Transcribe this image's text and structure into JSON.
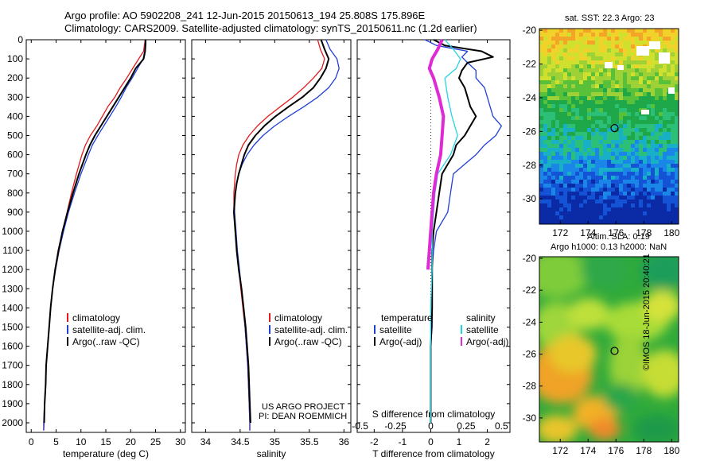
{
  "header": {
    "line1": "Argo profile: AO 5902208_241 12-Jun-2015 20150613_194 25.808S 175.896E",
    "line2": "Climatology: CARS2009. Satellite-adjusted climatology: synTS_20150611.nc (1.2d earlier)"
  },
  "colors": {
    "climatology": "#e41a1c",
    "satellite": "#1f3fd6",
    "argo": "#000000",
    "salinity_satellite": "#22d4e6",
    "salinity_argo": "#e02ad6"
  },
  "credits": {
    "project": "US ARGO PROJECT",
    "pi": "PI: DEAN ROEMMICH"
  },
  "side_label": "©IMOS 18-Jun-2015 20:40:21",
  "map_sst": {
    "title": "sat. SST: 22.3 Argo: 23"
  },
  "map_sla": {
    "title1": "Altim. SLA: 0.19",
    "title2": "Argo h1000: 0.13 h2000: NaN"
  },
  "chart_data": [
    {
      "type": "line",
      "id": "temperature",
      "xlabel": "temperature (deg C)",
      "ylabel": "",
      "xlim": [
        -1,
        31
      ],
      "ylim": [
        2050,
        0
      ],
      "xticks": [
        0,
        5,
        10,
        15,
        20,
        25,
        30
      ],
      "yticks": [
        0,
        100,
        200,
        300,
        400,
        500,
        600,
        700,
        800,
        900,
        1000,
        1100,
        1200,
        1300,
        1400,
        1500,
        1600,
        1700,
        1800,
        1900,
        2000
      ],
      "legend": [
        "climatology",
        "satellite-adj. clim.",
        "Argo(..raw -QC)"
      ],
      "series": [
        {
          "name": "climatology",
          "depth": [
            0,
            60,
            100,
            150,
            200,
            250,
            300,
            350,
            400,
            450,
            500,
            550,
            600,
            700,
            800,
            900,
            1000,
            1100,
            1200,
            1300,
            1400,
            1500,
            1600,
            1700,
            1800,
            1900,
            2000,
            2040
          ],
          "values": [
            22.9,
            22.6,
            21.6,
            20.4,
            19.2,
            17.9,
            16.8,
            15.4,
            14.3,
            13.2,
            11.9,
            10.9,
            10.2,
            9.1,
            8.1,
            7.2,
            6.3,
            5.4,
            4.8,
            4.3,
            3.9,
            3.6,
            3.3,
            3.0,
            2.9,
            2.7,
            2.6,
            2.5
          ]
        },
        {
          "name": "satellite-adj. clim.",
          "depth": [
            0,
            60,
            100,
            150,
            200,
            250,
            300,
            350,
            400,
            450,
            500,
            550,
            600,
            700,
            800,
            900,
            1000,
            1100,
            1200,
            1300,
            1400,
            1500,
            1600,
            1700,
            1800,
            1900,
            2000,
            2040
          ],
          "values": [
            23.0,
            22.8,
            22.5,
            21.4,
            20.3,
            19.1,
            18.1,
            17.0,
            15.8,
            14.6,
            13.4,
            12.3,
            11.5,
            10.0,
            8.7,
            7.5,
            6.5,
            5.6,
            4.9,
            4.3,
            3.9,
            3.6,
            3.3,
            3.0,
            2.9,
            2.7,
            2.5,
            2.5
          ]
        },
        {
          "name": "Argo(..raw -QC)",
          "depth": [
            0,
            20,
            60,
            100,
            150,
            200,
            250,
            300,
            350,
            400,
            450,
            500,
            550,
            600,
            700,
            800,
            900,
            1000,
            1100,
            1200,
            1300,
            1400,
            1500,
            1600,
            1700,
            1800,
            1900,
            2000
          ],
          "values": [
            23.0,
            23.0,
            22.9,
            22.6,
            21.0,
            20.0,
            18.8,
            17.6,
            16.4,
            15.2,
            14.0,
            12.8,
            11.8,
            11.0,
            9.6,
            8.4,
            7.3,
            6.3,
            5.5,
            4.8,
            4.3,
            3.9,
            3.6,
            3.3,
            3.0,
            2.9,
            2.7,
            2.6
          ]
        }
      ]
    },
    {
      "type": "line",
      "id": "salinity",
      "xlabel": "salinity",
      "ylabel": "",
      "xlim": [
        33.8,
        36.1
      ],
      "ylim": [
        2050,
        0
      ],
      "xticks": [
        34,
        34.5,
        35,
        35.5,
        36
      ],
      "legend": [
        "climatology",
        "satellite-adj. clim.",
        "Argo(..raw -QC)"
      ],
      "series": [
        {
          "name": "climatology",
          "depth": [
            0,
            50,
            100,
            150,
            200,
            250,
            300,
            350,
            400,
            450,
            500,
            550,
            600,
            650,
            700,
            750,
            800,
            850,
            900,
            950,
            1000,
            1100,
            1200,
            1300,
            1400,
            1500,
            1600,
            1700,
            1800,
            1900,
            2000,
            2040
          ],
          "values": [
            35.62,
            35.66,
            35.72,
            35.68,
            35.56,
            35.42,
            35.26,
            35.08,
            34.9,
            34.75,
            34.63,
            34.54,
            34.48,
            34.45,
            34.43,
            34.42,
            34.41,
            34.41,
            34.41,
            34.42,
            34.43,
            34.45,
            34.48,
            34.51,
            34.54,
            34.57,
            34.59,
            34.61,
            34.62,
            34.63,
            34.64,
            34.64
          ]
        },
        {
          "name": "satellite-adj. clim.",
          "depth": [
            0,
            50,
            100,
            150,
            200,
            250,
            300,
            350,
            400,
            450,
            500,
            550,
            600,
            650,
            700,
            750,
            800,
            850,
            900,
            950,
            1000,
            1100,
            1200,
            1300,
            1400,
            1500,
            1600,
            1700,
            1800,
            1900,
            2000,
            2040
          ],
          "values": [
            35.74,
            35.8,
            35.9,
            35.93,
            35.88,
            35.78,
            35.62,
            35.42,
            35.2,
            35.0,
            34.83,
            34.7,
            34.6,
            34.53,
            34.48,
            34.45,
            34.43,
            34.42,
            34.42,
            34.43,
            34.44,
            34.46,
            34.49,
            34.52,
            34.55,
            34.57,
            34.59,
            34.61,
            34.62,
            34.63,
            34.64,
            34.64
          ]
        },
        {
          "name": "Argo(..raw -QC)",
          "depth": [
            0,
            50,
            100,
            150,
            200,
            250,
            300,
            350,
            400,
            450,
            500,
            550,
            600,
            650,
            700,
            750,
            800,
            850,
            900,
            950,
            1000,
            1100,
            1200,
            1300,
            1400,
            1500,
            1600,
            1700,
            1800,
            1900,
            2000
          ],
          "values": [
            35.67,
            35.72,
            35.78,
            35.74,
            35.66,
            35.56,
            35.4,
            35.2,
            35.01,
            34.85,
            34.72,
            34.62,
            34.56,
            34.52,
            34.48,
            34.45,
            34.43,
            34.42,
            34.41,
            34.42,
            34.43,
            34.45,
            34.48,
            34.52,
            34.55,
            34.58,
            34.6,
            34.62,
            34.63,
            34.64,
            34.65
          ]
        }
      ]
    },
    {
      "type": "line",
      "id": "difference",
      "xlabel": "T difference from climatology",
      "x2label": "S difference from climatology",
      "xlim": [
        -2.6,
        2.8
      ],
      "ylim": [
        2050,
        0
      ],
      "xticks": [
        -2,
        -1,
        0,
        1,
        2
      ],
      "x2ticks": [
        -0.5,
        -0.25,
        0,
        0.25,
        0.5
      ],
      "legend_temperature": "temperature",
      "legend_salinity": "salinity",
      "legend": [
        "satellite",
        "Argo(-adj)",
        "satellite",
        "Argo(-adj)"
      ],
      "series": [
        {
          "name": "satellite",
          "group": "temperature",
          "depth": [
            0,
            30,
            60,
            90,
            120,
            160,
            200,
            250,
            300,
            350,
            400,
            450,
            500,
            550,
            600,
            650,
            700,
            800,
            900,
            1000,
            1100,
            1200,
            1300,
            1400,
            1500,
            1600,
            1700,
            1800,
            1900,
            2000
          ],
          "values": [
            -0.2,
            0.2,
            1.3,
            1.1,
            1.3,
            1.6,
            1.6,
            1.9,
            2.0,
            2.1,
            2.2,
            2.5,
            2.3,
            1.9,
            1.6,
            1.2,
            0.8,
            0.7,
            0.6,
            0.2,
            0.1,
            0.05,
            0.05,
            0.05,
            0.05,
            0.0,
            0.0,
            0.0,
            0.0,
            0.0
          ]
        },
        {
          "name": "Argo(-adj)",
          "group": "temperature",
          "depth": [
            0,
            30,
            60,
            90,
            120,
            160,
            200,
            250,
            300,
            350,
            400,
            450,
            500,
            550,
            600,
            650,
            700,
            800,
            900,
            1000,
            1100,
            1200,
            1300,
            1400,
            1500,
            1600,
            1700,
            1800,
            1900,
            2000
          ],
          "values": [
            0.1,
            0.5,
            1.8,
            2.2,
            1.3,
            1.1,
            1.0,
            1.2,
            1.3,
            1.4,
            1.6,
            1.4,
            1.2,
            0.9,
            0.8,
            0.6,
            0.4,
            0.3,
            0.2,
            0.1,
            0.05,
            0.05,
            0.05,
            0.05,
            0.03,
            0.0,
            0.0,
            0.0,
            0.0,
            0.0
          ]
        },
        {
          "name": "satellite",
          "group": "salinity",
          "depth": [
            0,
            50,
            100,
            150,
            200,
            300,
            400,
            500,
            600,
            700,
            800,
            900,
            1000,
            1200,
            1400,
            1600,
            1800,
            2000
          ],
          "values": [
            0.1,
            0.16,
            0.21,
            0.18,
            0.1,
            0.12,
            0.15,
            0.19,
            0.14,
            0.05,
            0.03,
            0.02,
            0.01,
            0.01,
            0.0,
            0.0,
            0.0,
            0.0
          ]
        },
        {
          "name": "Argo(-adj)",
          "group": "salinity",
          "depth": [
            0,
            50,
            100,
            150,
            200,
            300,
            400,
            500,
            600,
            700,
            800,
            900,
            1000,
            1100,
            1200
          ],
          "values": [
            0.08,
            0.05,
            0.01,
            -0.01,
            0.02,
            0.06,
            0.09,
            0.08,
            0.07,
            0.04,
            0.02,
            0.01,
            0.0,
            -0.01,
            -0.02
          ]
        }
      ]
    }
  ],
  "maps": [
    {
      "id": "sst",
      "xticks": [
        172,
        174,
        176,
        178,
        180
      ],
      "yticks": [
        -20,
        -22,
        -24,
        -26,
        -28,
        -30
      ],
      "lon_range": [
        170.5,
        180.5
      ],
      "lat_range": [
        -31.5,
        -19.9
      ],
      "argo_position": {
        "lon": 175.9,
        "lat": -25.8
      }
    },
    {
      "id": "sla",
      "xticks": [
        172,
        174,
        176,
        178,
        180
      ],
      "yticks": [
        -20,
        -22,
        -24,
        -26,
        -28,
        -30
      ],
      "lon_range": [
        170.5,
        180.5
      ],
      "lat_range": [
        -31.5,
        -19.9
      ],
      "argo_position": {
        "lon": 175.9,
        "lat": -25.8
      }
    }
  ]
}
